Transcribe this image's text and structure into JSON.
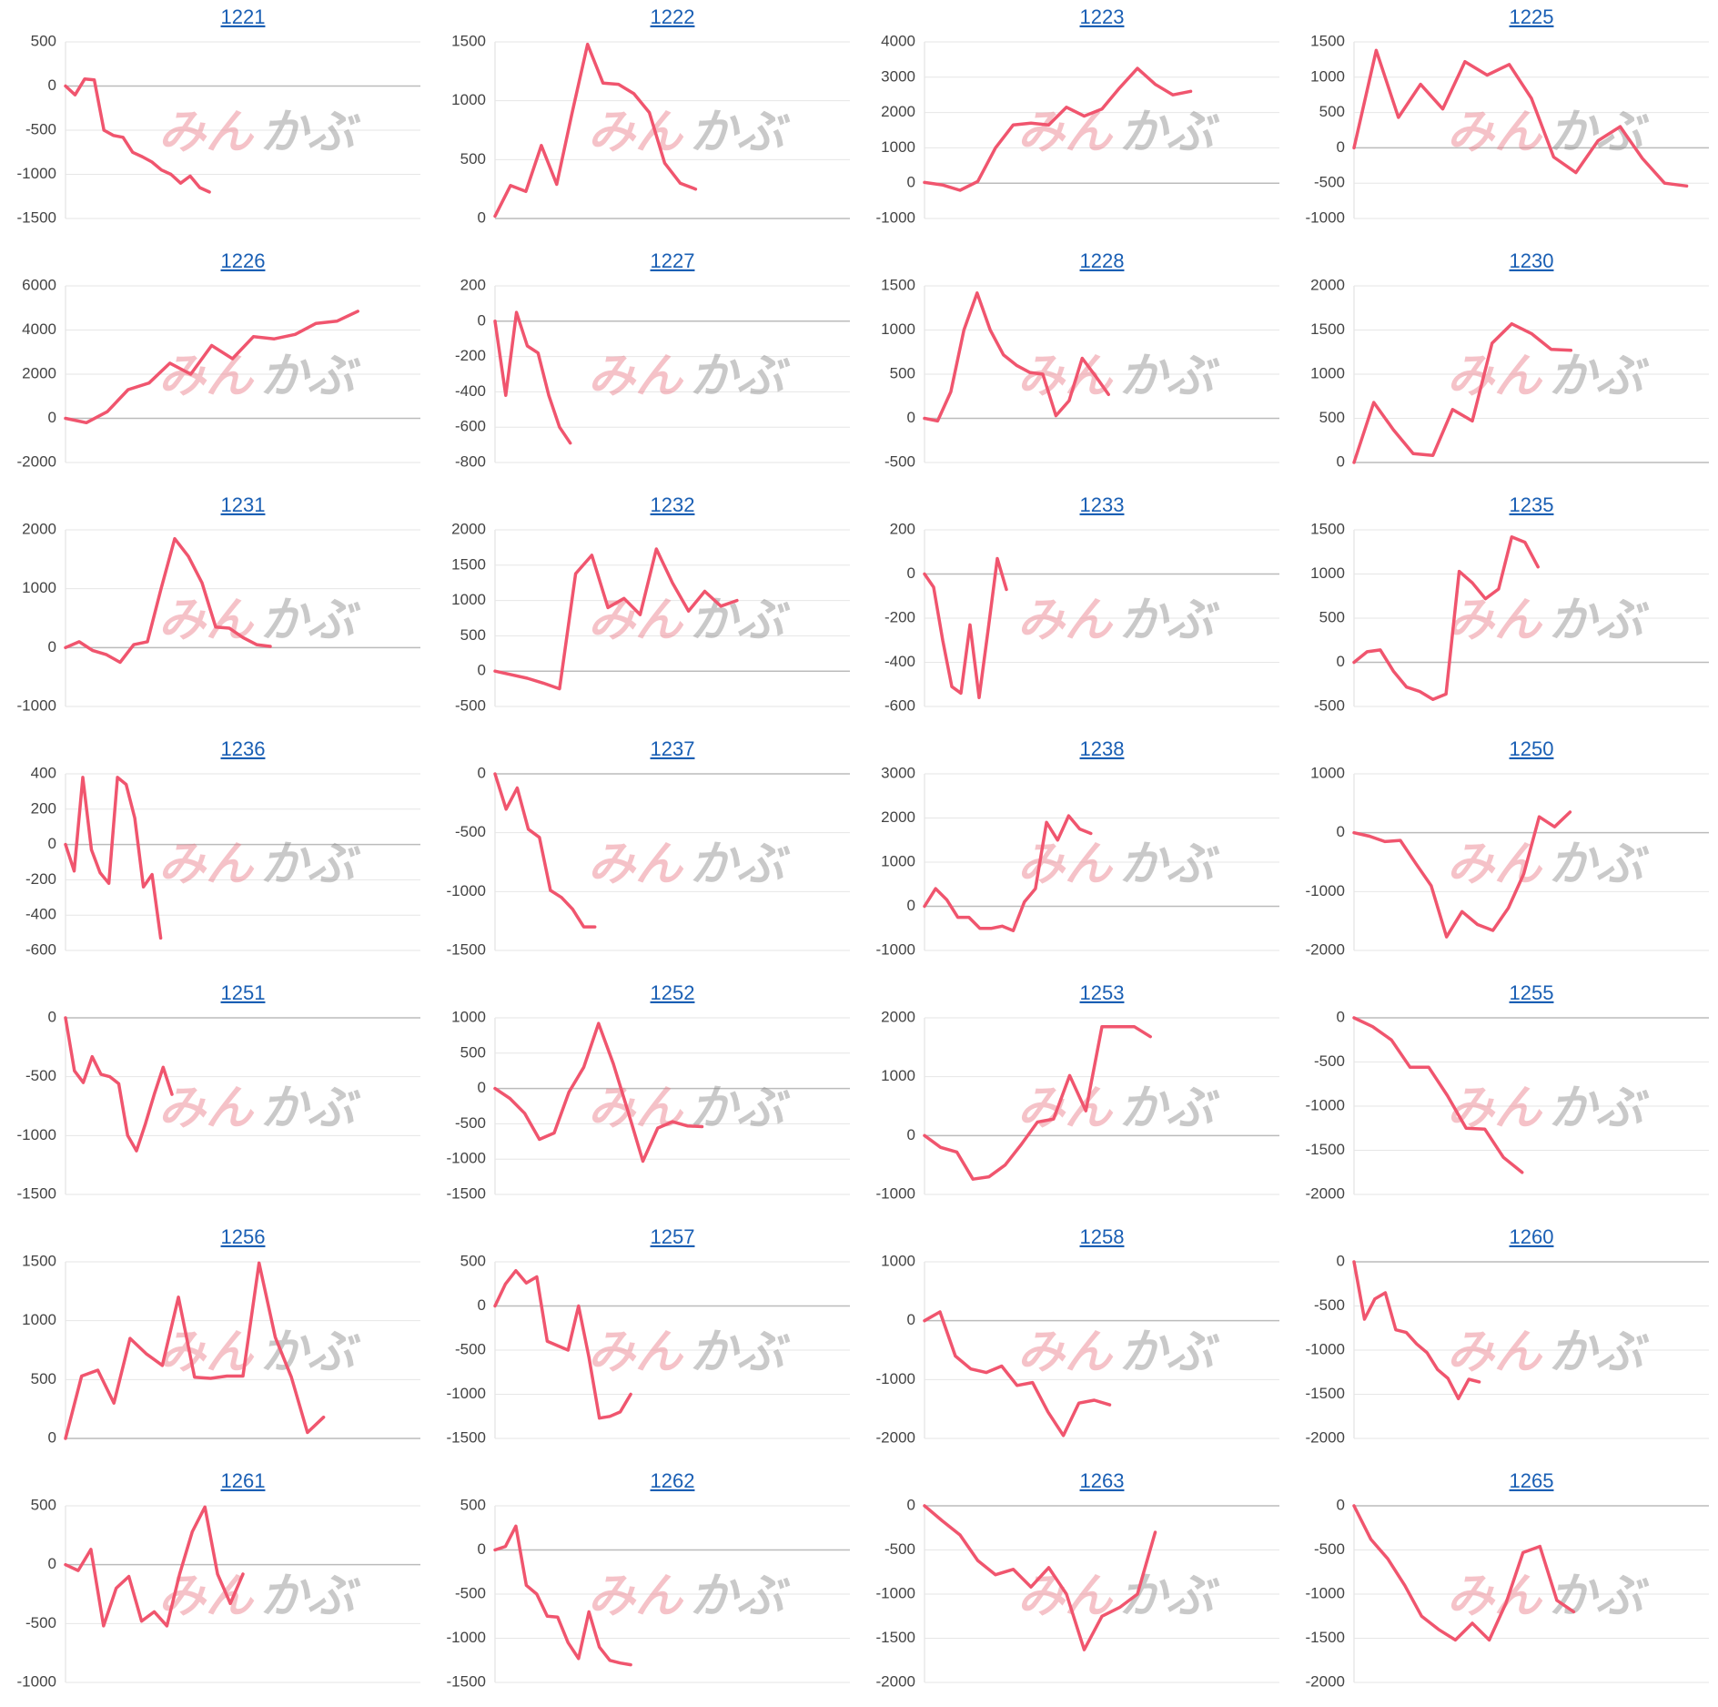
{
  "watermark": [
    "みん",
    "かぶ"
  ],
  "chart_data": [
    {
      "type": "line",
      "title": "1221",
      "color": "#f0556e",
      "grid": true,
      "ylim": [
        -1500,
        500
      ],
      "yticks": [
        -1500,
        -1000,
        -500,
        0,
        500
      ],
      "values": [
        0,
        -100,
        80,
        70,
        -500,
        -560,
        -580,
        -750,
        -800,
        -860,
        -950,
        -1000,
        -1100,
        -1020,
        -1150,
        -1200,
        null,
        null,
        null,
        null,
        null,
        null,
        null,
        null,
        null,
        null,
        null,
        null,
        null,
        null,
        null,
        null,
        null,
        null,
        null,
        null,
        null,
        null
      ]
    },
    {
      "type": "line",
      "title": "1222",
      "color": "#f0556e",
      "grid": true,
      "ylim": [
        0,
        1500
      ],
      "yticks": [
        0,
        500,
        1000,
        1500
      ],
      "values": [
        20,
        280,
        230,
        620,
        290,
        900,
        1480,
        1150,
        1140,
        1060,
        900,
        470,
        300,
        250,
        null,
        null,
        null,
        null,
        null,
        null,
        null,
        null,
        null,
        null
      ]
    },
    {
      "type": "line",
      "title": "1223",
      "color": "#f0556e",
      "grid": true,
      "ylim": [
        -1000,
        4000
      ],
      "yticks": [
        -1000,
        0,
        1000,
        2000,
        3000,
        4000
      ],
      "values": [
        20,
        -50,
        -200,
        50,
        1000,
        1650,
        1700,
        1650,
        2150,
        1900,
        2100,
        2700,
        3250,
        2800,
        2500,
        2600,
        null,
        null,
        null,
        null,
        null
      ]
    },
    {
      "type": "line",
      "title": "1225",
      "color": "#f0556e",
      "grid": true,
      "ylim": [
        -1000,
        1500
      ],
      "yticks": [
        -1000,
        -500,
        0,
        500,
        1000,
        1500
      ],
      "values": [
        0,
        1380,
        430,
        900,
        550,
        1220,
        1030,
        1180,
        700,
        -130,
        -350,
        100,
        300,
        -150,
        -500,
        -540,
        null
      ]
    },
    {
      "type": "line",
      "title": "1226",
      "color": "#f0556e",
      "grid": true,
      "ylim": [
        -2000,
        6000
      ],
      "yticks": [
        -2000,
        0,
        2000,
        4000,
        6000
      ],
      "values": [
        0,
        -200,
        300,
        1300,
        1600,
        2500,
        2000,
        3300,
        2700,
        3700,
        3600,
        3800,
        4300,
        4400,
        4850,
        null,
        null,
        null
      ]
    },
    {
      "type": "line",
      "title": "1227",
      "color": "#f0556e",
      "grid": true,
      "ylim": [
        -800,
        200
      ],
      "yticks": [
        -800,
        -600,
        -400,
        -200,
        0,
        200
      ],
      "values": [
        0,
        -420,
        50,
        -140,
        -180,
        -420,
        -600,
        -690,
        null,
        null,
        null,
        null,
        null,
        null,
        null,
        null,
        null,
        null,
        null,
        null,
        null,
        null,
        null,
        null,
        null,
        null,
        null,
        null,
        null,
        null,
        null,
        null,
        null,
        null
      ]
    },
    {
      "type": "line",
      "title": "1228",
      "color": "#f0556e",
      "grid": true,
      "ylim": [
        -500,
        1500
      ],
      "yticks": [
        -500,
        0,
        500,
        1000,
        1500
      ],
      "values": [
        0,
        -30,
        300,
        1000,
        1420,
        1000,
        720,
        600,
        520,
        500,
        30,
        200,
        680,
        480,
        270,
        null,
        null,
        null,
        null,
        null,
        null,
        null,
        null,
        null,
        null,
        null,
        null,
        null
      ]
    },
    {
      "type": "line",
      "title": "1230",
      "color": "#f0556e",
      "grid": true,
      "ylim": [
        0,
        2000
      ],
      "yticks": [
        0,
        500,
        1000,
        1500,
        2000
      ],
      "values": [
        0,
        680,
        370,
        100,
        80,
        600,
        470,
        1350,
        1570,
        1460,
        1280,
        1270,
        null,
        null,
        null,
        null,
        null,
        null,
        null
      ]
    },
    {
      "type": "line",
      "title": "1231",
      "color": "#f0556e",
      "grid": true,
      "ylim": [
        -1000,
        2000
      ],
      "yticks": [
        -1000,
        0,
        1000,
        2000
      ],
      "values": [
        0,
        100,
        -50,
        -120,
        -250,
        50,
        100,
        1000,
        1850,
        1550,
        1100,
        350,
        330,
        170,
        50,
        20,
        null,
        null,
        null,
        null,
        null,
        null,
        null,
        null,
        null,
        null,
        null
      ]
    },
    {
      "type": "line",
      "title": "1232",
      "color": "#f0556e",
      "grid": true,
      "ylim": [
        -500,
        2000
      ],
      "yticks": [
        -500,
        0,
        500,
        1000,
        1500,
        2000
      ],
      "values": [
        0,
        -50,
        -100,
        -170,
        -250,
        1380,
        1640,
        900,
        1030,
        800,
        1730,
        1250,
        850,
        1130,
        920,
        1000,
        null,
        null,
        null,
        null,
        null,
        null,
        null
      ]
    },
    {
      "type": "line",
      "title": "1233",
      "color": "#f0556e",
      "grid": true,
      "ylim": [
        -600,
        200
      ],
      "yticks": [
        -600,
        -400,
        -200,
        0,
        200
      ],
      "values": [
        0,
        -60,
        -300,
        -510,
        -540,
        -230,
        -560,
        -250,
        70,
        -70,
        null,
        null,
        null,
        null,
        null,
        null,
        null,
        null,
        null,
        null,
        null,
        null,
        null,
        null,
        null,
        null,
        null,
        null,
        null,
        null,
        null,
        null,
        null,
        null,
        null,
        null,
        null,
        null,
        null,
        null
      ]
    },
    {
      "type": "line",
      "title": "1235",
      "color": "#f0556e",
      "grid": true,
      "ylim": [
        -500,
        1500
      ],
      "yticks": [
        -500,
        0,
        500,
        1000,
        1500
      ],
      "values": [
        0,
        120,
        140,
        -100,
        -280,
        -330,
        -420,
        -360,
        1030,
        900,
        720,
        830,
        1420,
        1360,
        1080,
        null,
        null,
        null,
        null,
        null,
        null,
        null,
        null,
        null,
        null,
        null,
        null,
        null
      ]
    },
    {
      "type": "line",
      "title": "1236",
      "color": "#f0556e",
      "grid": true,
      "ylim": [
        -600,
        400
      ],
      "yticks": [
        -600,
        -400,
        -200,
        0,
        200,
        400
      ],
      "values": [
        0,
        -150,
        380,
        -30,
        -160,
        -220,
        380,
        340,
        150,
        -240,
        -170,
        -530,
        null,
        null,
        null,
        null,
        null,
        null,
        null,
        null,
        null,
        null,
        null,
        null,
        null,
        null,
        null,
        null,
        null,
        null,
        null,
        null,
        null,
        null,
        null,
        null,
        null,
        null,
        null,
        null,
        null,
        null
      ]
    },
    {
      "type": "line",
      "title": "1237",
      "color": "#f0556e",
      "grid": true,
      "ylim": [
        -1500,
        0
      ],
      "yticks": [
        -1500,
        -1000,
        -500,
        0
      ],
      "values": [
        0,
        -300,
        -120,
        -470,
        -540,
        -990,
        -1050,
        -1150,
        -1300,
        -1300,
        null,
        null,
        null,
        null,
        null,
        null,
        null,
        null,
        null,
        null,
        null,
        null,
        null,
        null,
        null,
        null,
        null,
        null,
        null,
        null,
        null,
        null,
        null
      ]
    },
    {
      "type": "line",
      "title": "1238",
      "color": "#f0556e",
      "grid": true,
      "ylim": [
        -1000,
        3000
      ],
      "yticks": [
        -1000,
        0,
        1000,
        2000,
        3000
      ],
      "values": [
        0,
        400,
        150,
        -250,
        -250,
        -500,
        -500,
        -450,
        -550,
        100,
        400,
        1900,
        1500,
        2050,
        1750,
        1650,
        null,
        null,
        null,
        null,
        null,
        null,
        null,
        null,
        null,
        null,
        null,
        null,
        null,
        null,
        null,
        null,
        null
      ]
    },
    {
      "type": "line",
      "title": "1250",
      "color": "#f0556e",
      "grid": true,
      "ylim": [
        -2000,
        1000
      ],
      "yticks": [
        -2000,
        -1000,
        0,
        1000
      ],
      "values": [
        0,
        -60,
        -150,
        -130,
        -520,
        -900,
        -1770,
        -1340,
        -1560,
        -1660,
        -1280,
        -700,
        270,
        100,
        350,
        null,
        null,
        null,
        null,
        null,
        null,
        null,
        null,
        null
      ]
    },
    {
      "type": "line",
      "title": "1251",
      "color": "#f0556e",
      "grid": true,
      "ylim": [
        -1500,
        0
      ],
      "yticks": [
        -1500,
        -1000,
        -500,
        0
      ],
      "values": [
        0,
        -450,
        -550,
        -330,
        -480,
        -500,
        -560,
        -1000,
        -1130,
        -900,
        -650,
        -420,
        -650,
        null,
        null,
        null,
        null,
        null,
        null,
        null,
        null,
        null,
        null,
        null,
        null,
        null,
        null,
        null,
        null,
        null,
        null,
        null,
        null,
        null,
        null,
        null,
        null,
        null,
        null,
        null,
        null
      ]
    },
    {
      "type": "line",
      "title": "1252",
      "color": "#f0556e",
      "grid": true,
      "ylim": [
        -1500,
        1000
      ],
      "yticks": [
        -1500,
        -1000,
        -500,
        0,
        500,
        1000
      ],
      "values": [
        0,
        -140,
        -350,
        -720,
        -630,
        -50,
        300,
        920,
        350,
        -330,
        -1030,
        -560,
        -470,
        -530,
        -540,
        null,
        null,
        null,
        null,
        null,
        null,
        null,
        null,
        null,
        null
      ]
    },
    {
      "type": "line",
      "title": "1253",
      "color": "#f0556e",
      "grid": true,
      "ylim": [
        -1000,
        2000
      ],
      "yticks": [
        -1000,
        0,
        1000,
        2000
      ],
      "values": [
        0,
        -200,
        -280,
        -740,
        -700,
        -500,
        -150,
        230,
        280,
        1020,
        420,
        1850,
        1850,
        1850,
        1680,
        null,
        null,
        null,
        null,
        null,
        null,
        null,
        null
      ]
    },
    {
      "type": "line",
      "title": "1255",
      "color": "#f0556e",
      "grid": true,
      "ylim": [
        -2000,
        0
      ],
      "yticks": [
        -2000,
        -1500,
        -1000,
        -500,
        0
      ],
      "values": [
        0,
        -100,
        -250,
        -560,
        -560,
        -880,
        -1250,
        -1260,
        -1580,
        -1750,
        null,
        null,
        null,
        null,
        null,
        null,
        null,
        null,
        null,
        null
      ]
    },
    {
      "type": "line",
      "title": "1256",
      "color": "#f0556e",
      "grid": true,
      "ylim": [
        0,
        1500
      ],
      "yticks": [
        0,
        500,
        1000,
        1500
      ],
      "values": [
        0,
        530,
        580,
        300,
        850,
        720,
        620,
        1200,
        520,
        510,
        530,
        530,
        1490,
        860,
        520,
        50,
        180,
        null,
        null,
        null,
        null,
        null,
        null
      ]
    },
    {
      "type": "line",
      "title": "1257",
      "color": "#f0556e",
      "grid": true,
      "ylim": [
        -1500,
        500
      ],
      "yticks": [
        -1500,
        -1000,
        -500,
        0,
        500
      ],
      "values": [
        0,
        250,
        400,
        260,
        330,
        -400,
        -450,
        -500,
        0,
        -580,
        -1270,
        -1250,
        -1200,
        -1000,
        null,
        null,
        null,
        null,
        null,
        null,
        null,
        null,
        null,
        null,
        null,
        null,
        null,
        null,
        null,
        null,
        null,
        null,
        null,
        null,
        null
      ]
    },
    {
      "type": "line",
      "title": "1258",
      "color": "#f0556e",
      "grid": true,
      "ylim": [
        -2000,
        1000
      ],
      "yticks": [
        -2000,
        -1000,
        0,
        1000
      ],
      "values": [
        0,
        150,
        -600,
        -820,
        -880,
        -770,
        -1100,
        -1050,
        -1550,
        -1950,
        -1400,
        -1350,
        -1430,
        null,
        null,
        null,
        null,
        null,
        null,
        null,
        null,
        null,
        null,
        null
      ]
    },
    {
      "type": "line",
      "title": "1260",
      "color": "#f0556e",
      "grid": true,
      "ylim": [
        -2000,
        0
      ],
      "yticks": [
        -2000,
        -1500,
        -1000,
        -500,
        0
      ],
      "values": [
        0,
        -650,
        -420,
        -350,
        -770,
        -800,
        -930,
        -1030,
        -1220,
        -1320,
        -1550,
        -1330,
        -1360,
        null,
        null,
        null,
        null,
        null,
        null,
        null,
        null,
        null,
        null,
        null,
        null,
        null,
        null,
        null,
        null,
        null,
        null,
        null,
        null,
        null,
        null
      ]
    },
    {
      "type": "line",
      "title": "1261",
      "color": "#f0556e",
      "grid": true,
      "ylim": [
        -1000,
        500
      ],
      "yticks": [
        -1000,
        -500,
        0,
        500
      ],
      "values": [
        0,
        -50,
        130,
        -520,
        -200,
        -100,
        -480,
        -400,
        -520,
        -80,
        280,
        490,
        -80,
        -330,
        -80,
        null,
        null,
        null,
        null,
        null,
        null,
        null,
        null,
        null,
        null,
        null,
        null,
        null,
        null
      ]
    },
    {
      "type": "line",
      "title": "1262",
      "color": "#f0556e",
      "grid": true,
      "ylim": [
        -1500,
        500
      ],
      "yticks": [
        -1500,
        -1000,
        -500,
        0,
        500
      ],
      "values": [
        0,
        40,
        270,
        -400,
        -500,
        -750,
        -760,
        -1050,
        -1230,
        -700,
        -1100,
        -1250,
        -1280,
        -1300,
        null,
        null,
        null,
        null,
        null,
        null,
        null,
        null,
        null,
        null,
        null,
        null,
        null,
        null,
        null,
        null,
        null,
        null,
        null,
        null,
        null
      ]
    },
    {
      "type": "line",
      "title": "1263",
      "color": "#f0556e",
      "grid": true,
      "ylim": [
        -2000,
        0
      ],
      "yticks": [
        -2000,
        -1500,
        -1000,
        -500,
        0
      ],
      "values": [
        0,
        -170,
        -330,
        -620,
        -780,
        -720,
        -920,
        -700,
        -1000,
        -1630,
        -1250,
        -1150,
        -1000,
        -300,
        null,
        null,
        null,
        null,
        null,
        null,
        null
      ]
    },
    {
      "type": "line",
      "title": "1265",
      "color": "#f0556e",
      "grid": true,
      "ylim": [
        -2000,
        0
      ],
      "yticks": [
        -2000,
        -1500,
        -1000,
        -500,
        0
      ],
      "values": [
        0,
        -380,
        -600,
        -900,
        -1250,
        -1400,
        -1520,
        -1330,
        -1520,
        -1100,
        -530,
        -460,
        -1070,
        -1200,
        null,
        null,
        null,
        null,
        null,
        null,
        null,
        null
      ]
    }
  ]
}
